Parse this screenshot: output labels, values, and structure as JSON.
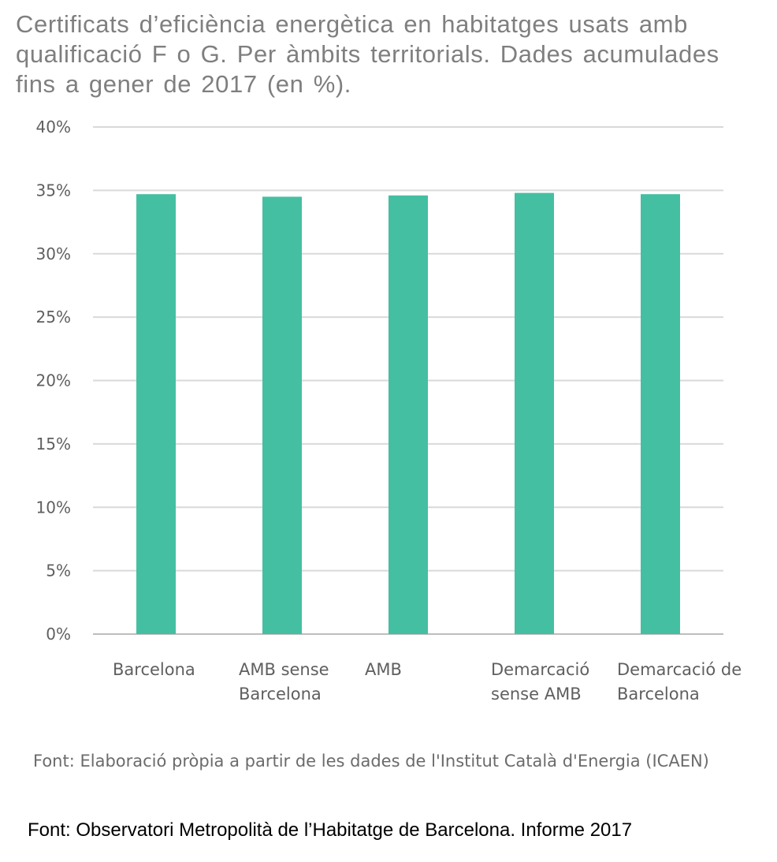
{
  "chart_data": {
    "type": "bar",
    "title": "Certificats d’eficiència energètica en habitatges usats amb qualificació F o G. Per àmbits territorials. Dades acumulades fins a gener de 2017 (en %).",
    "categories": [
      [
        "Barcelona"
      ],
      [
        "AMB sense",
        "Barcelona"
      ],
      [
        "AMB"
      ],
      [
        "Demarcació",
        "sense AMB"
      ],
      [
        "Demarcació de",
        "Barcelona"
      ]
    ],
    "values": [
      34.7,
      34.5,
      34.6,
      34.8,
      34.7
    ],
    "unit": "%",
    "ylim": [
      0,
      40
    ],
    "yticks": [
      0,
      5,
      10,
      15,
      20,
      25,
      30,
      35,
      40
    ],
    "ytick_labels": [
      "0%",
      "5%",
      "10%",
      "15%",
      "20%",
      "25%",
      "30%",
      "35%",
      "40%"
    ],
    "xlabel": "",
    "ylabel": "",
    "grid": true,
    "legend": "none",
    "bar_color": "#45bfa2"
  },
  "footer": {
    "source_inner": "Font: Elaboració pròpia a partir de les dades de l'Institut Català d'Energia (ICAEN)",
    "source_outer": "Font: Observatori Metropolità de l’Habitatge de Barcelona. Informe 2017"
  }
}
